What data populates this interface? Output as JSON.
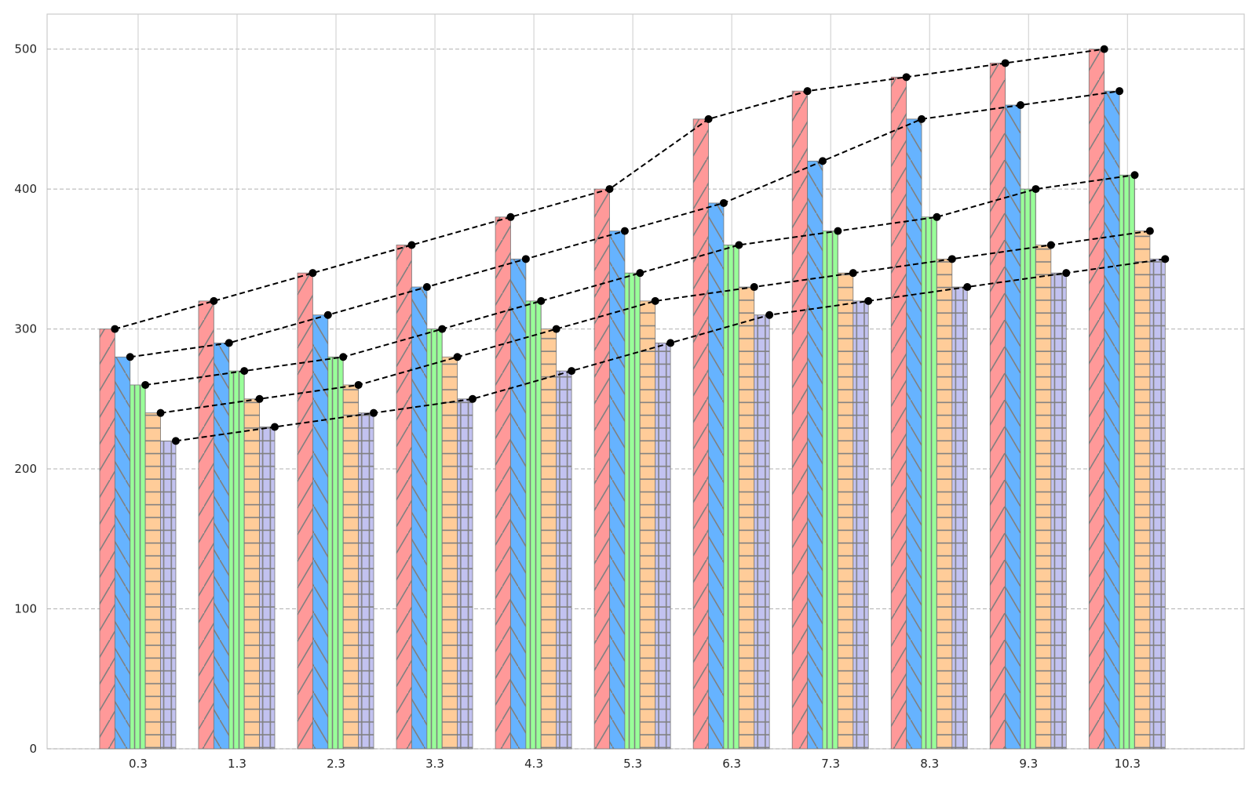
{
  "chart_data": {
    "type": "bar",
    "categories": [
      "0.3",
      "1.3",
      "2.3",
      "3.3",
      "4.3",
      "5.3",
      "6.3",
      "7.3",
      "8.3",
      "9.3",
      "10.3"
    ],
    "series": [
      {
        "values": [
          300,
          320,
          340,
          360,
          380,
          400,
          450,
          470,
          480,
          490,
          500
        ],
        "color": "#ff9999",
        "hatch": "diagonal"
      },
      {
        "values": [
          280,
          290,
          310,
          330,
          350,
          370,
          390,
          420,
          450,
          460,
          470
        ],
        "color": "#66b3ff",
        "hatch": "backslash"
      },
      {
        "values": [
          260,
          270,
          280,
          300,
          320,
          340,
          360,
          370,
          380,
          400,
          410
        ],
        "color": "#99ff99",
        "hatch": "vertical"
      },
      {
        "values": [
          240,
          250,
          260,
          280,
          300,
          320,
          330,
          340,
          350,
          360,
          370
        ],
        "color": "#ffcc99",
        "hatch": "horizontal"
      },
      {
        "values": [
          220,
          230,
          240,
          250,
          270,
          290,
          310,
          320,
          330,
          340,
          350
        ],
        "color": "#c2c2f0",
        "hatch": "grid"
      }
    ],
    "overlay": {
      "type": "line",
      "style": "dashed",
      "marker": "dot",
      "color": "#000000",
      "follows": "bar tops of each series"
    },
    "title": "",
    "xlabel": "",
    "ylabel": "",
    "ylim": [
      0,
      525
    ],
    "yticks": [
      "0",
      "100",
      "200",
      "300",
      "400",
      "500"
    ],
    "grid": true
  }
}
